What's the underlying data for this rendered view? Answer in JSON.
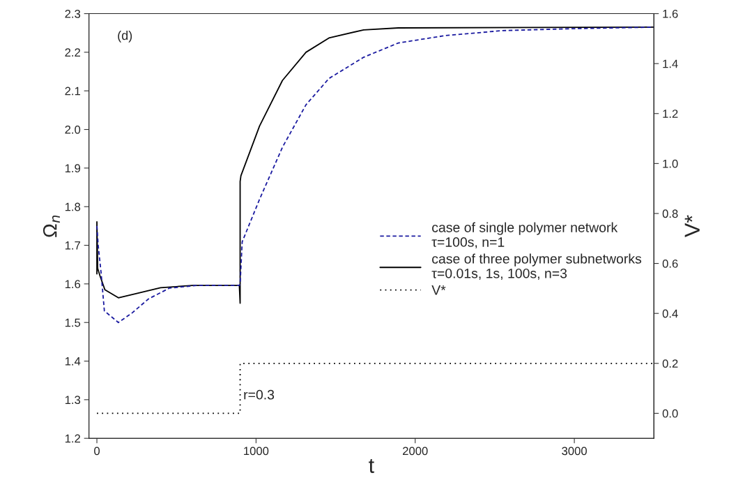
{
  "chart_data": {
    "type": "line",
    "xlabel": "t",
    "ylabel": "Ω$_{n}$",
    "y2label": "V*",
    "xlim": [
      -50,
      3500
    ],
    "xticks": [
      0,
      1000,
      2000,
      3000
    ],
    "ylim": [
      1.2,
      2.3
    ],
    "yticks": [
      1.2,
      1.3,
      1.4,
      1.5,
      1.6,
      1.7,
      1.8,
      1.9,
      {
        "value": 2,
        "label": "2.0"
      },
      2.1,
      2.2,
      2.3
    ],
    "y2lim": [
      -0.1,
      1.6
    ],
    "y2ticks": [
      {
        "value": 0,
        "label": "0.0"
      },
      0.2,
      0.4,
      0.6,
      0.8,
      {
        "value": 1,
        "label": "1.0"
      },
      1.2,
      1.4,
      1.6
    ],
    "grid": false,
    "legend": "right",
    "marker": "none",
    "series": [
      {
        "name": "case of single polymer network\nτ=100s, n=1",
        "color": "#1a1aa0",
        "line_style": "dashed",
        "x": [
          0,
          8,
          26,
          47,
          135,
          222,
          324,
          455,
          629,
          895,
          900,
          913,
          1022,
          1166,
          1314,
          1458,
          1676,
          1894,
          2186,
          2548,
          2985,
          3500
        ],
        "values": [
          1.75,
          1.7,
          1.63,
          1.53,
          1.5,
          1.525,
          1.561,
          1.589,
          1.596,
          1.596,
          1.6,
          1.709,
          1.819,
          1.954,
          2.064,
          2.132,
          2.187,
          2.224,
          2.243,
          2.256,
          2.261,
          2.265
        ]
      },
      {
        "name": "case of three polymer subnetworks\nτ=0.01s, 1s, 100s, n=3",
        "color": "#000000",
        "line_style": "solid",
        "x": [
          0,
          0,
          5,
          20,
          50,
          135,
          250,
          400,
          600,
          895,
          900,
          900,
          905,
          1022,
          1166,
          1314,
          1458,
          1676,
          1894,
          3500
        ],
        "values": [
          1.626,
          1.761,
          1.64,
          1.62,
          1.585,
          1.564,
          1.575,
          1.59,
          1.596,
          1.596,
          1.55,
          1.865,
          1.88,
          2.009,
          2.127,
          2.2,
          2.237,
          2.258,
          2.263,
          2.265
        ]
      },
      {
        "name": "V*",
        "color": "#000000",
        "line_style": "dotted",
        "axis": "y2",
        "x": [
          0,
          900,
          900,
          3500
        ],
        "values": [
          0,
          0,
          0.2,
          0.2
        ]
      }
    ],
    "annotations": [
      "(d)",
      {
        "text": "r=0.3",
        "x": 920,
        "y": 1.31
      }
    ]
  }
}
